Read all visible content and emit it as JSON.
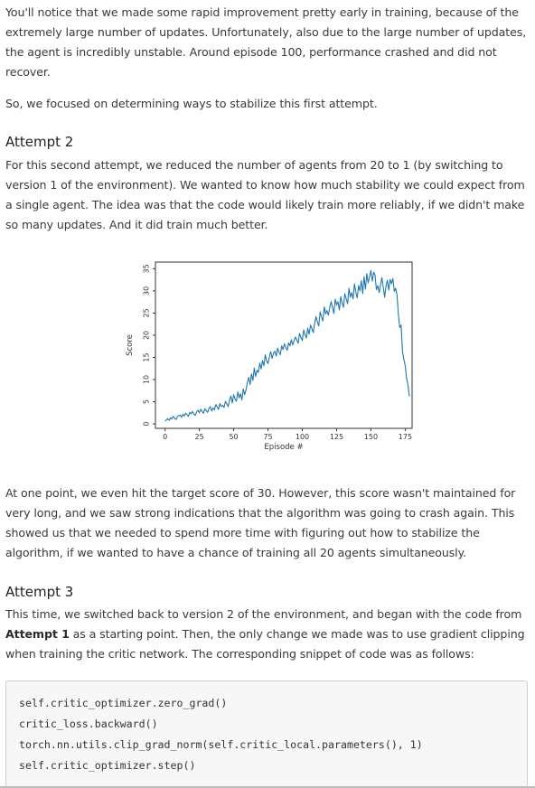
{
  "article": {
    "intro": "You'll notice that we made some rapid improvement pretty early in training, because of the extremely large number of updates. Unfortunately, also due to the large number of updates, the agent is incredibly unstable. Around episode 100, performance crashed and did not recover.",
    "focus": "So, we focused on determining ways to stabilize this first attempt.",
    "attempt2": {
      "heading": "Attempt 2",
      "body": "For this second attempt, we reduced the number of agents from 20 to 1 (by switching to version 1 of the environment). We wanted to know how much stability we could expect from a single agent. The idea was that the code would likely train more reliably, if we didn't make so many updates. And it did train much better."
    },
    "after_chart": "At one point, we even hit the target score of 30. However, this score wasn't maintained for very long, and we saw strong indications that the algorithm was going to crash again. This showed us that we needed to spend more time with figuring out how to stabilize the algorithm, if we wanted to have a chance of training all 20 agents simultaneously.",
    "attempt3": {
      "heading": "Attempt 3",
      "body_pre": "This time, we switched back to version 2 of the environment, and began with the code from ",
      "body_bold": "Attempt 1",
      "body_post": " as a starting point. Then, the only change we made was to use gradient clipping when training the critic network. The corresponding snippet of code was as follows:"
    },
    "code_lines": [
      "self.critic_optimizer.zero_grad()",
      "critic_loss.backward()",
      "torch.nn.utils.clip_grad_norm(self.critic_local.parameters(), 1)",
      "self.critic_optimizer.step()"
    ]
  },
  "chart_data": {
    "type": "line",
    "title": "",
    "xlabel": "Episode #",
    "ylabel": "Score",
    "xlim": [
      -7,
      180
    ],
    "ylim": [
      -1,
      36.5
    ],
    "xticks": [
      "0",
      "25",
      "50",
      "75",
      "100",
      "125",
      "150",
      "175"
    ],
    "yticks": [
      "0",
      "5",
      "10",
      "15",
      "20",
      "25",
      "30",
      "35"
    ],
    "grid": false,
    "line_color": "#1f77b4",
    "series": [
      {
        "x": [
          0,
          1,
          2,
          3,
          4,
          5,
          6,
          7,
          8,
          9,
          10,
          11,
          12,
          13,
          14,
          15,
          16,
          17,
          18,
          19,
          20,
          21,
          22,
          23,
          24,
          25,
          26,
          27,
          28,
          29,
          30,
          31,
          32,
          33,
          34,
          35,
          36,
          37,
          38,
          39,
          40,
          41,
          42,
          43,
          44,
          45,
          46,
          47,
          48,
          49,
          50,
          51,
          52,
          53,
          54,
          55,
          56,
          57,
          58,
          59,
          60,
          61,
          62,
          63,
          64,
          65,
          66,
          67,
          68,
          69,
          70,
          71,
          72,
          73,
          74,
          75,
          76,
          77,
          78,
          79,
          80,
          81,
          82,
          83,
          84,
          85,
          86,
          87,
          88,
          89,
          90,
          91,
          92,
          93,
          94,
          95,
          96,
          97,
          98,
          99,
          100,
          101,
          102,
          103,
          104,
          105,
          106,
          107,
          108,
          109,
          110,
          111,
          112,
          113,
          114,
          115,
          116,
          117,
          118,
          119,
          120,
          121,
          122,
          123,
          124,
          125,
          126,
          127,
          128,
          129,
          130,
          131,
          132,
          133,
          134,
          135,
          136,
          137,
          138,
          139,
          140,
          141,
          142,
          143,
          144,
          145,
          146,
          147,
          148,
          149,
          150,
          151,
          152,
          153,
          154,
          155,
          156,
          157,
          158,
          159,
          160,
          161,
          162,
          163,
          164,
          165,
          166,
          167,
          168,
          169,
          170,
          171,
          172,
          173,
          174,
          175,
          176,
          177,
          178
        ],
        "y": [
          0.6,
          0.9,
          1.2,
          0.8,
          1.4,
          1.1,
          1.7,
          1.3,
          1.0,
          1.6,
          1.9,
          2.0,
          1.5,
          2.2,
          1.8,
          2.4,
          2.1,
          1.7,
          2.6,
          2.3,
          2.8,
          2.2,
          1.9,
          2.7,
          3.1,
          2.5,
          3.3,
          2.8,
          2.4,
          3.4,
          3.0,
          2.6,
          3.5,
          3.9,
          2.9,
          3.6,
          3.2,
          4.4,
          3.8,
          3.3,
          4.6,
          3.9,
          4.2,
          3.7,
          5.1,
          4.5,
          3.9,
          5.4,
          6.3,
          4.7,
          6.6,
          5.6,
          5.1,
          7.2,
          5.9,
          6.8,
          5.4,
          7.9,
          6.6,
          7.7,
          9.4,
          10.5,
          8.9,
          11.3,
          9.8,
          12.6,
          10.7,
          12.1,
          11.6,
          13.7,
          12.4,
          14.3,
          13.1,
          15.6,
          14.2,
          13.6,
          15.1,
          16.3,
          14.8,
          15.9,
          16.4,
          15.3,
          17.1,
          16.2,
          15.6,
          17.6,
          16.8,
          18.1,
          17.2,
          16.6,
          18.3,
          17.6,
          19.0,
          17.8,
          18.8,
          19.6,
          18.9,
          18.2,
          20.4,
          19.5,
          18.8,
          21.2,
          20.1,
          19.4,
          21.6,
          20.2,
          22.3,
          21.5,
          20.6,
          22.7,
          24.2,
          23.0,
          22.1,
          25.3,
          24.1,
          23.2,
          26.4,
          24.8,
          25.6,
          24.5,
          26.2,
          27.6,
          26.3,
          24.9,
          28.1,
          26.8,
          27.6,
          25.7,
          28.7,
          27.3,
          26.3,
          29.4,
          28.2,
          27.1,
          30.6,
          28.6,
          29.6,
          28.2,
          31.6,
          29.7,
          28.4,
          31.2,
          30.0,
          32.3,
          29.4,
          33.2,
          30.4,
          33.9,
          31.8,
          33.2,
          34.6,
          32.2,
          34.2,
          33.6,
          30.3,
          31.2,
          29.6,
          31.4,
          33.0,
          30.8,
          28.6,
          31.1,
          32.4,
          30.2,
          32.6,
          31.6,
          32.8,
          29.9,
          30.6,
          29.1,
          24.8,
          21.7,
          22.3,
          16.3,
          14.6,
          13.1,
          10.2,
          8.8,
          6.2
        ]
      }
    ]
  }
}
